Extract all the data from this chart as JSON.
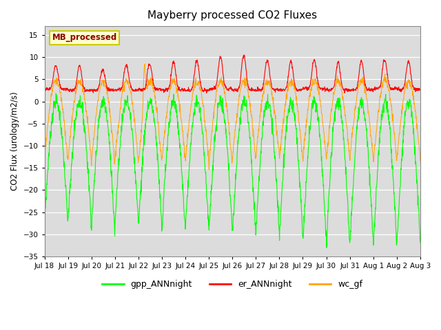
{
  "title": "Mayberry processed CO2 Fluxes",
  "ylabel": "CO2 Flux (urology/m2/s)",
  "ylim": [
    -35,
    17
  ],
  "yticks": [
    -35,
    -30,
    -25,
    -20,
    -15,
    -10,
    -5,
    0,
    5,
    10,
    15
  ],
  "bg_color": "#dcdcdc",
  "fig_color": "#ffffff",
  "legend_label": "MB_processed",
  "legend_text_color": "#8b0000",
  "legend_border_color": "#cccc00",
  "legend_bg_color": "#ffffcc",
  "line_colors": {
    "gpp": "#00ff00",
    "er": "#ff0000",
    "wc": "#ffa500"
  },
  "line_labels": [
    "gpp_ANNnight",
    "er_ANNnight",
    "wc_gf"
  ],
  "n_days": 16,
  "start_day": 18,
  "points_per_day": 96
}
